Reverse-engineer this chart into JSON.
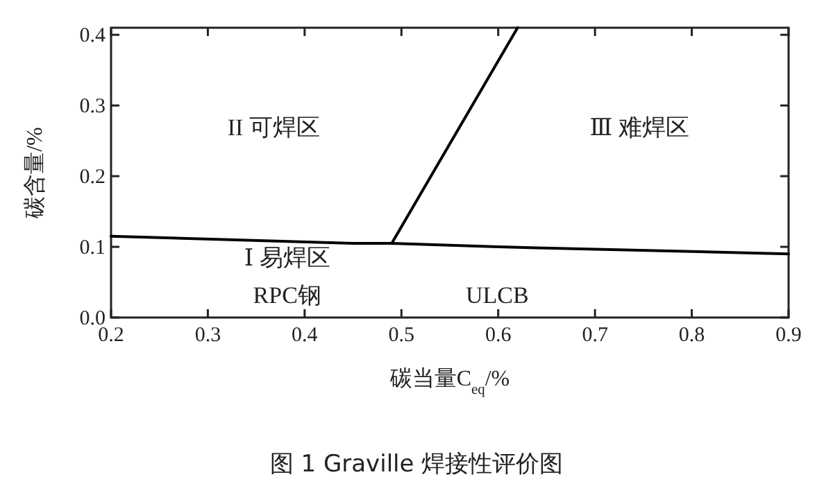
{
  "chart_data": {
    "type": "line",
    "title": "图 1 Graville 焊接性评价图",
    "xlabel": "碳当量C$_{eq}$/%",
    "ylabel": "碳含量/%",
    "xlim": [
      0.2,
      0.9
    ],
    "xticks": [
      0.2,
      0.3,
      0.4,
      0.5,
      0.6,
      0.7,
      0.8,
      0.9
    ],
    "ylim": [
      0,
      0.41
    ],
    "yticks": [
      {
        "value": 0,
        "label": "0.0"
      },
      0.1,
      0.2,
      0.3,
      0.4
    ],
    "series": [
      {
        "color": "#000000",
        "x": [
          0.2,
          0.45,
          0.49,
          0.6,
          0.9
        ],
        "values": [
          0.115,
          0.105,
          0.105,
          0.1,
          0.09
        ]
      },
      {
        "color": "#000000",
        "x": [
          0.49,
          0.62
        ],
        "values": [
          0.105,
          0.41
        ]
      }
    ],
    "annotations": [
      "II 可焊区",
      "Ⅲ 难焊区",
      "Ⅰ 易焊区",
      "RPC钢",
      "ULCB"
    ],
    "grid": false,
    "marker": "none",
    "line_style": "solid"
  }
}
